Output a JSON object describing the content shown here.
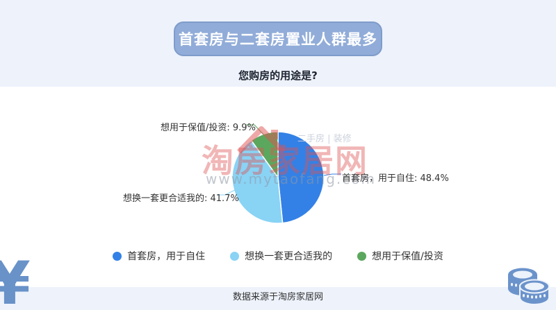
{
  "header": {
    "title": "首套房与二套房置业人群最多",
    "question": "您购房的用途是?"
  },
  "chart_data": {
    "type": "pie",
    "title": "您购房的用途是?",
    "categories": [
      "首套房，用于自住",
      "想换一套更合适我的",
      "想用于保值/投资"
    ],
    "values": [
      48.4,
      41.7,
      9.9
    ],
    "unit": "%",
    "colors": [
      "#3381e6",
      "#89d3f5",
      "#5ba75e"
    ],
    "slice_labels": [
      "首套房，用于自住: 48.4%",
      "想换一套更合适我的: 41.7%",
      "想用于保值/投资: 9.9%"
    ],
    "start_angle": "12 o'clock, clockwise",
    "legend_position": "bottom",
    "label_leader_lines": true
  },
  "watermark": {
    "brand": "淘房家居网",
    "url": "www.mytaofang.com",
    "tagline": "二手房 | 装修",
    "brand_color": "#e05252"
  },
  "footer": {
    "source": "数据来源于淘房家居网"
  },
  "icons": {
    "yen_symbol": "¥",
    "coins": "coin-stacks",
    "house_roof": "house-roof"
  },
  "theme": {
    "band_color": "#edf2fb",
    "banner_fill": "#91acd8",
    "banner_border": "#7e9bca",
    "banner_text": "#ffffff",
    "corner_icon_blue": "#6b93cb",
    "text_dark": "#333333"
  }
}
